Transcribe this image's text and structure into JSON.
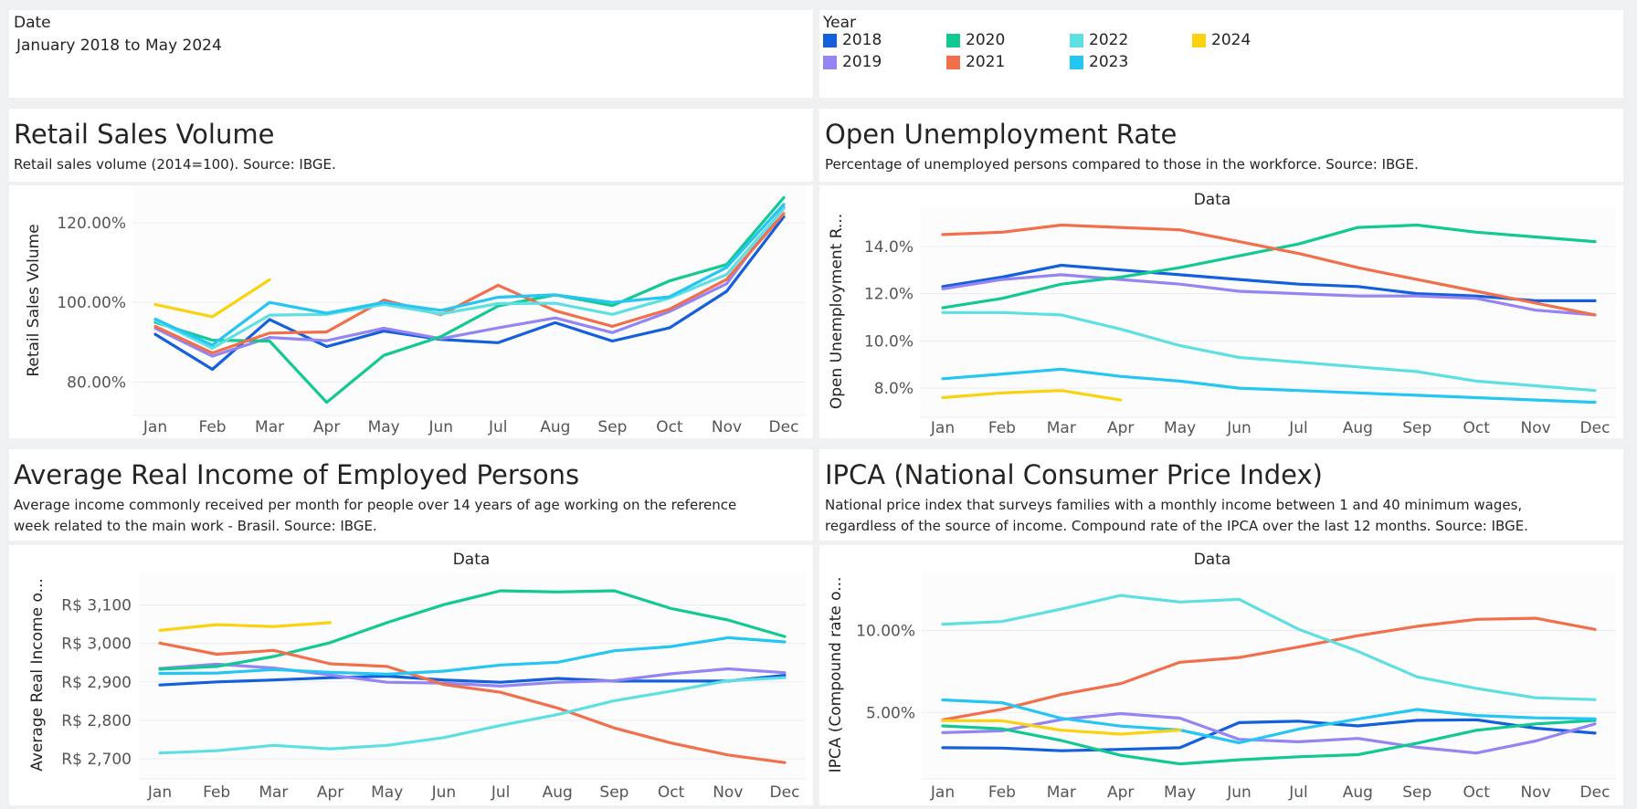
{
  "filters": {
    "date": {
      "caption": "Date",
      "value": "January 2018 to May 2024"
    }
  },
  "legend": {
    "caption": "Year",
    "items": [
      {
        "label": "2018",
        "color": "#1460DC"
      },
      {
        "label": "2019",
        "color": "#9585F2"
      },
      {
        "label": "2020",
        "color": "#12C991"
      },
      {
        "label": "2021",
        "color": "#F26F4B"
      },
      {
        "label": "2022",
        "color": "#5EE0E2"
      },
      {
        "label": "2023",
        "color": "#25C6F4"
      },
      {
        "label": "2024",
        "color": "#FAD20F"
      }
    ]
  },
  "panels": {
    "retail": {
      "title": "Retail Sales Volume",
      "subtitle": "Retail sales volume (2014=100). Source: IBGE."
    },
    "unemployment": {
      "title": "Open Unemployment Rate",
      "subtitle": "Percentage of unemployed persons compared to those in the workforce. Source: IBGE."
    },
    "income": {
      "title": "Average Real Income of Employed Persons",
      "subtitle_line1": "Average income commonly received per month for people over 14 years of age working on the reference",
      "subtitle_line2": "week related to the main work - Brasil. Source: IBGE."
    },
    "ipca": {
      "title": "IPCA (National Consumer Price Index)",
      "subtitle_line1": "National price index that surveys families with a monthly income between 1 and 40 minimum wages,",
      "subtitle_line2": "regardless of the source of income. Compound rate of the IPCA over the last 12 months. Source: IBGE."
    }
  },
  "chart_data": [
    {
      "id": "retail",
      "type": "line",
      "title": "",
      "xlabel": "",
      "ylabel": "Retail Sales Volume",
      "categories": [
        "Jan",
        "Feb",
        "Mar",
        "Apr",
        "May",
        "Jun",
        "Jul",
        "Aug",
        "Sep",
        "Oct",
        "Nov",
        "Dec"
      ],
      "yticks": [
        80,
        100,
        120
      ],
      "ytick_labels": [
        "80.00%",
        "100.00%",
        "120.00%"
      ],
      "ylim": [
        73,
        128
      ],
      "grid": true,
      "series": [
        {
          "name": "2018",
          "values": [
            92.0,
            83.2,
            95.7,
            88.9,
            92.8,
            90.7,
            89.9,
            94.9,
            90.3,
            93.6,
            102.8,
            121.5
          ]
        },
        {
          "name": "2019",
          "values": [
            93.5,
            86.5,
            91.2,
            90.4,
            93.5,
            90.9,
            93.6,
            96.1,
            92.4,
            97.7,
            104.7,
            123.9
          ]
        },
        {
          "name": "2020",
          "values": [
            95.0,
            90.5,
            90.3,
            74.9,
            86.7,
            91.4,
            99.1,
            101.9,
            99.2,
            105.4,
            109.5,
            126.3
          ]
        },
        {
          "name": "2021",
          "values": [
            94.0,
            87.3,
            92.3,
            92.6,
            100.6,
            96.9,
            104.3,
            97.9,
            94.0,
            98.3,
            105.8,
            122.3
          ]
        },
        {
          "name": "2022",
          "values": [
            95.5,
            88.5,
            96.8,
            97.0,
            99.5,
            97.1,
            99.7,
            99.8,
            97.0,
            101.1,
            107.0,
            123.5
          ]
        },
        {
          "name": "2023",
          "values": [
            95.8,
            89.3,
            100.0,
            97.3,
            100.0,
            98.0,
            101.3,
            101.9,
            100.0,
            101.4,
            108.8,
            124.6
          ]
        },
        {
          "name": "2024",
          "values": [
            99.5,
            96.4,
            105.7
          ]
        }
      ]
    },
    {
      "id": "unemployment",
      "type": "line",
      "title": "Data",
      "xlabel": "",
      "ylabel": "Open Unemployment R...",
      "categories": [
        "Jan",
        "Feb",
        "Mar",
        "Apr",
        "May",
        "Jun",
        "Jul",
        "Aug",
        "Sep",
        "Oct",
        "Nov",
        "Dec"
      ],
      "yticks": [
        8,
        10,
        12,
        14
      ],
      "ytick_labels": [
        "8.0%",
        "10.0%",
        "12.0%",
        "14.0%"
      ],
      "ylim": [
        7.0,
        15.5
      ],
      "grid": true,
      "series": [
        {
          "name": "2018",
          "values": [
            12.3,
            12.7,
            13.2,
            13.0,
            12.8,
            12.6,
            12.4,
            12.3,
            12.0,
            11.9,
            11.7,
            11.7
          ]
        },
        {
          "name": "2019",
          "values": [
            12.2,
            12.6,
            12.8,
            12.6,
            12.4,
            12.1,
            12.0,
            11.9,
            11.9,
            11.8,
            11.3,
            11.1
          ]
        },
        {
          "name": "2020",
          "values": [
            11.4,
            11.8,
            12.4,
            12.7,
            13.1,
            13.6,
            14.1,
            14.8,
            14.9,
            14.6,
            14.4,
            14.2
          ]
        },
        {
          "name": "2021",
          "values": [
            14.5,
            14.6,
            14.9,
            14.8,
            14.7,
            14.2,
            13.7,
            13.1,
            12.6,
            12.1,
            11.6,
            11.1
          ]
        },
        {
          "name": "2022",
          "values": [
            11.2,
            11.2,
            11.1,
            10.5,
            9.8,
            9.3,
            9.1,
            8.9,
            8.7,
            8.3,
            8.1,
            7.9
          ]
        },
        {
          "name": "2023",
          "values": [
            8.4,
            8.6,
            8.8,
            8.5,
            8.3,
            8.0,
            7.9,
            7.8,
            7.7,
            7.6,
            7.5,
            7.4
          ]
        },
        {
          "name": "2024",
          "values": [
            7.6,
            7.8,
            7.9,
            7.5
          ]
        }
      ]
    },
    {
      "id": "income",
      "type": "line",
      "title": "Data",
      "xlabel": "",
      "ylabel": "Average Real Income o...",
      "categories": [
        "Jan",
        "Feb",
        "Mar",
        "Apr",
        "May",
        "Jun",
        "Jul",
        "Aug",
        "Sep",
        "Oct",
        "Nov",
        "Dec"
      ],
      "yticks": [
        2700,
        2800,
        2900,
        3000,
        3100
      ],
      "ytick_labels": [
        "R$ 2,700",
        "R$ 2,800",
        "R$ 2,900",
        "R$ 3,000",
        "R$ 3,100"
      ],
      "ylim": [
        2662,
        3175
      ],
      "grid": true,
      "series": [
        {
          "name": "2018",
          "values": [
            2892,
            2900,
            2905,
            2911,
            2915,
            2905,
            2899,
            2909,
            2902,
            2902,
            2902,
            2917
          ]
        },
        {
          "name": "2019",
          "values": [
            2935,
            2946,
            2936,
            2918,
            2899,
            2897,
            2889,
            2899,
            2903,
            2921,
            2934,
            2924
          ]
        },
        {
          "name": "2020",
          "values": [
            2933,
            2940,
            2966,
            3002,
            3054,
            3101,
            3137,
            3134,
            3137,
            3091,
            3061,
            3018
          ]
        },
        {
          "name": "2021",
          "values": [
            3001,
            2972,
            2982,
            2947,
            2940,
            2893,
            2873,
            2832,
            2780,
            2741,
            2710,
            2690
          ]
        },
        {
          "name": "2022",
          "values": [
            2715,
            2721,
            2735,
            2726,
            2735,
            2755,
            2787,
            2815,
            2851,
            2876,
            2903,
            2911
          ]
        },
        {
          "name": "2023",
          "values": [
            2922,
            2923,
            2932,
            2925,
            2920,
            2928,
            2944,
            2951,
            2981,
            2992,
            3015,
            3004
          ]
        },
        {
          "name": "2024",
          "values": [
            3034,
            3049,
            3044,
            3054
          ]
        }
      ]
    },
    {
      "id": "ipca",
      "type": "line",
      "title": "Data",
      "xlabel": "",
      "ylabel": "IPCA (Compound rate o...",
      "categories": [
        "Jan",
        "Feb",
        "Mar",
        "Apr",
        "May",
        "Jun",
        "Jul",
        "Aug",
        "Sep",
        "Oct",
        "Nov",
        "Dec"
      ],
      "yticks": [
        5,
        10
      ],
      "ytick_labels": [
        "5.00%",
        "10.00%"
      ],
      "ylim": [
        1.3,
        13.3
      ],
      "grid": true,
      "series": [
        {
          "name": "2018",
          "values": [
            2.86,
            2.84,
            2.68,
            2.76,
            2.86,
            4.39,
            4.48,
            4.19,
            4.53,
            4.56,
            4.05,
            3.75
          ]
        },
        {
          "name": "2019",
          "values": [
            3.78,
            3.89,
            4.58,
            4.94,
            4.66,
            3.37,
            3.22,
            3.43,
            2.89,
            2.54,
            3.27,
            4.31
          ]
        },
        {
          "name": "2020",
          "values": [
            4.19,
            4.01,
            3.3,
            2.4,
            1.88,
            2.13,
            2.31,
            2.44,
            3.14,
            3.92,
            4.31,
            4.52
          ]
        },
        {
          "name": "2021",
          "values": [
            4.56,
            5.2,
            6.1,
            6.76,
            8.06,
            8.35,
            8.99,
            9.68,
            10.25,
            10.67,
            10.74,
            10.06
          ]
        },
        {
          "name": "2022",
          "values": [
            10.38,
            10.54,
            11.3,
            12.13,
            11.73,
            11.89,
            10.07,
            8.73,
            7.17,
            6.47,
            5.9,
            5.79
          ]
        },
        {
          "name": "2023",
          "values": [
            5.77,
            5.6,
            4.65,
            4.18,
            3.94,
            3.16,
            3.99,
            4.61,
            5.19,
            4.82,
            4.68,
            4.62
          ]
        },
        {
          "name": "2024",
          "values": [
            4.51,
            4.5,
            3.93,
            3.69,
            3.93
          ]
        }
      ]
    }
  ]
}
